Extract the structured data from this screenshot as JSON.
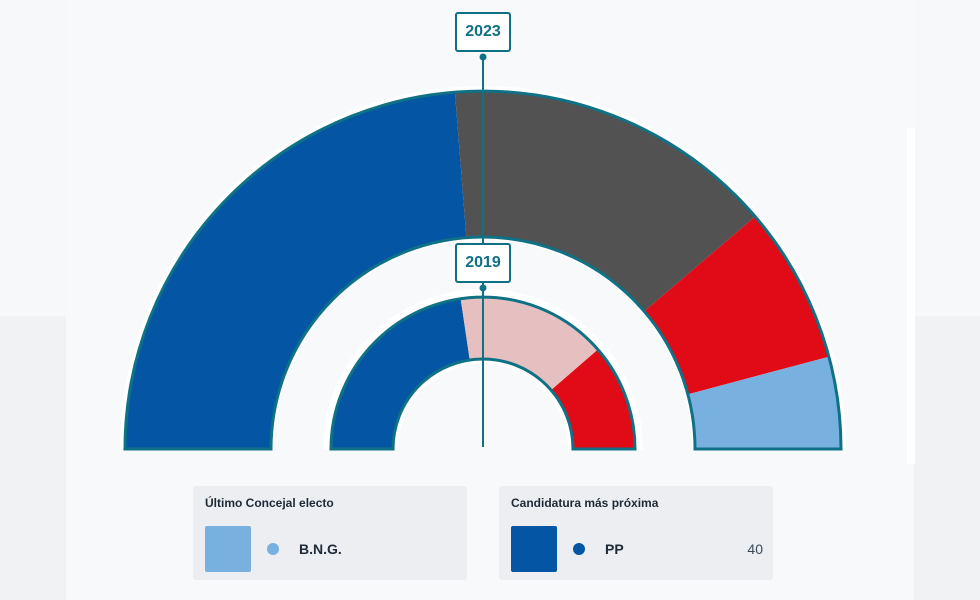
{
  "hemicycle": {
    "outer": {
      "year": "2023",
      "segments": [
        {
          "party": "PP",
          "color": "#0455a3",
          "share": 0.475
        },
        {
          "party": "",
          "color": "#525252",
          "share": 0.3
        },
        {
          "party": "",
          "color": "#e10b18",
          "share": 0.142
        },
        {
          "party": "B.N.G.",
          "color": "#78b1e0",
          "share": 0.083
        }
      ]
    },
    "inner": {
      "year": "2019",
      "segments": [
        {
          "party": "PP",
          "color": "#0455a3",
          "share": 0.453
        },
        {
          "party": "",
          "color": "#e6c0c0",
          "share": 0.32
        },
        {
          "party": "",
          "color": "#e10b18",
          "share": 0.227
        }
      ]
    },
    "border_color": "#0f7186"
  },
  "cards": {
    "last_elected": {
      "title": "Último Concejal electo",
      "party": "B.N.G.",
      "color": "#78b1e0",
      "votes": ""
    },
    "next_candidate": {
      "title": "Candidatura más próxima",
      "party": "PP",
      "color": "#0455a3",
      "votes": "40"
    }
  }
}
